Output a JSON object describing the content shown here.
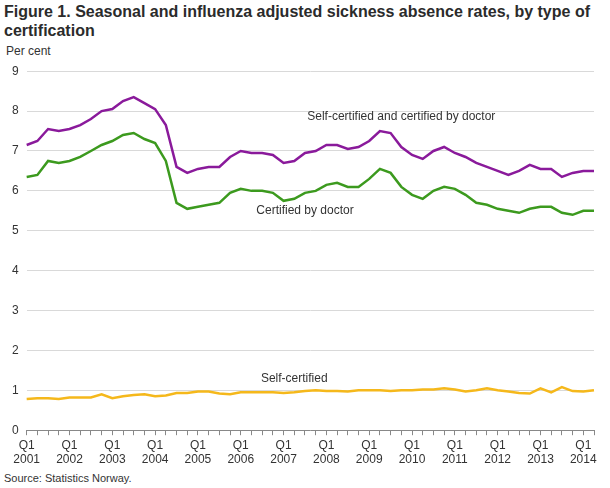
{
  "chart_data": {
    "type": "line",
    "title": "Figure 1. Seasonal and influenza adjusted sickness absence rates, by type of certification",
    "ylabel": "Per cent",
    "source": "Source: Statistics Norway.",
    "categories": [
      "Q1 2001",
      null,
      null,
      null,
      "Q1 2002",
      null,
      null,
      null,
      "Q1 2003",
      null,
      null,
      null,
      "Q1 2004",
      null,
      null,
      null,
      "Q1 2005",
      null,
      null,
      null,
      "Q1 2006",
      null,
      null,
      null,
      "Q1 2007",
      null,
      null,
      null,
      "Q1 2008",
      null,
      null,
      null,
      "Q1 2009",
      null,
      null,
      null,
      "Q1 2010",
      null,
      null,
      null,
      "Q1 2011",
      null,
      null,
      null,
      "Q1 2012",
      null,
      null,
      null,
      "Q1 2013",
      null,
      null,
      null,
      "Q1 2014",
      null
    ],
    "series": [
      {
        "name": "Self-certified and certified by doctor",
        "color": "#8a1a9b",
        "values": [
          7.15,
          7.25,
          7.55,
          7.5,
          7.55,
          7.65,
          7.8,
          8.0,
          8.05,
          8.25,
          8.35,
          8.2,
          8.05,
          7.65,
          6.6,
          6.45,
          6.55,
          6.6,
          6.6,
          6.85,
          7.0,
          6.95,
          6.95,
          6.9,
          6.7,
          6.75,
          6.95,
          7.0,
          7.15,
          7.15,
          7.05,
          7.1,
          7.25,
          7.5,
          7.45,
          7.1,
          6.9,
          6.8,
          7.0,
          7.1,
          6.95,
          6.85,
          6.7,
          6.6,
          6.5,
          6.4,
          6.5,
          6.65,
          6.55,
          6.55,
          6.35,
          6.45,
          6.5,
          6.5
        ]
      },
      {
        "name": "Certified by doctor",
        "color": "#3c9a1e",
        "values": [
          6.35,
          6.4,
          6.75,
          6.7,
          6.75,
          6.85,
          7.0,
          7.15,
          7.25,
          7.4,
          7.45,
          7.3,
          7.2,
          6.75,
          5.7,
          5.55,
          5.6,
          5.65,
          5.7,
          5.95,
          6.05,
          6.0,
          6.0,
          5.95,
          5.75,
          5.8,
          5.95,
          6.0,
          6.15,
          6.2,
          6.1,
          6.1,
          6.3,
          6.55,
          6.45,
          6.1,
          5.9,
          5.8,
          6.0,
          6.1,
          6.05,
          5.9,
          5.7,
          5.65,
          5.55,
          5.5,
          5.45,
          5.55,
          5.6,
          5.6,
          5.45,
          5.4,
          5.5,
          5.5
        ]
      },
      {
        "name": "Self-certified",
        "color": "#f5b81b",
        "values": [
          0.78,
          0.8,
          0.8,
          0.78,
          0.82,
          0.82,
          0.82,
          0.9,
          0.8,
          0.85,
          0.88,
          0.9,
          0.85,
          0.87,
          0.93,
          0.93,
          0.97,
          0.97,
          0.92,
          0.9,
          0.95,
          0.95,
          0.95,
          0.95,
          0.93,
          0.95,
          0.98,
          1.0,
          0.98,
          0.98,
          0.97,
          1.0,
          1.0,
          1.0,
          0.98,
          1.0,
          1.0,
          1.02,
          1.02,
          1.05,
          1.02,
          0.97,
          1.0,
          1.05,
          1.0,
          0.97,
          0.93,
          0.92,
          1.05,
          0.95,
          1.08,
          0.98,
          0.97,
          1.0
        ]
      }
    ],
    "ylim": [
      0,
      9
    ],
    "yticks": [
      0,
      1,
      2,
      3,
      4,
      5,
      6,
      7,
      8,
      9
    ],
    "grid": true
  }
}
